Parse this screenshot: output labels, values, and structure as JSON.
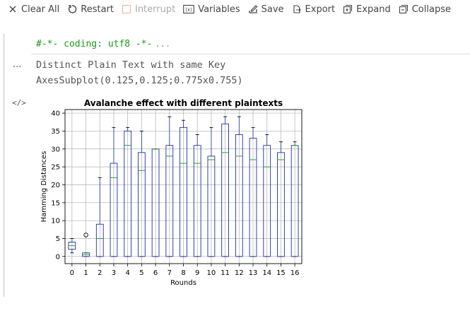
{
  "toolbar": {
    "items": [
      {
        "label": "Clear All",
        "icon": "close-icon",
        "disabled": false
      },
      {
        "label": "Restart",
        "icon": "restart-icon",
        "disabled": false
      },
      {
        "label": "Interrupt",
        "icon": "stop-icon",
        "disabled": true
      },
      {
        "label": "Variables",
        "icon": "variables-icon",
        "disabled": false
      },
      {
        "label": "Save",
        "icon": "save-icon",
        "disabled": false
      },
      {
        "label": "Export",
        "icon": "export-icon",
        "disabled": false
      },
      {
        "label": "Expand",
        "icon": "expand-icon",
        "disabled": false
      },
      {
        "label": "Collapse",
        "icon": "collapse-icon",
        "disabled": false
      }
    ]
  },
  "cell": {
    "code": "#-*- coding: utf8 -*-",
    "code_more": "...",
    "output_prompt": "...",
    "output_lines": [
      "Distinct Plain Text with same Key",
      "AxesSubplot(0.125,0.125;0.775x0.755)"
    ],
    "code_toggle": "</>"
  },
  "colors": {
    "box": "#1f2ea8",
    "median": "#2ca02c",
    "grid": "#b0b0b0"
  },
  "chart_data": {
    "type": "boxplot",
    "title": "Avalanche effect with different plaintexts",
    "xlabel": "Rounds",
    "ylabel": "Hamming Distances",
    "ylim": [
      -2,
      41
    ],
    "yticks": [
      0,
      5,
      10,
      15,
      20,
      25,
      30,
      35,
      40
    ],
    "grid": true,
    "categories": [
      "0",
      "1",
      "2",
      "3",
      "4",
      "5",
      "6",
      "7",
      "8",
      "9",
      "10",
      "11",
      "12",
      "13",
      "14",
      "15",
      "16"
    ],
    "boxes": [
      {
        "whislo": 1,
        "q1": 2,
        "med": 3,
        "q3": 4,
        "whishi": 5,
        "fliers": []
      },
      {
        "whislo": 0,
        "q1": 0,
        "med": 0.5,
        "q3": 1,
        "whishi": 1,
        "fliers": [
          6
        ]
      },
      {
        "whislo": 0,
        "q1": 0,
        "med": 5,
        "q3": 9,
        "whishi": 22,
        "fliers": []
      },
      {
        "whislo": 0,
        "q1": 0,
        "med": 22,
        "q3": 26,
        "whishi": 36,
        "fliers": []
      },
      {
        "whislo": 0,
        "q1": 0,
        "med": 31,
        "q3": 35,
        "whishi": 36,
        "fliers": []
      },
      {
        "whislo": 0,
        "q1": 0,
        "med": 24,
        "q3": 29,
        "whishi": 35,
        "fliers": []
      },
      {
        "whislo": 0,
        "q1": 0,
        "med": 30,
        "q3": 30,
        "whishi": 30,
        "fliers": []
      },
      {
        "whislo": 0,
        "q1": 0,
        "med": 28,
        "q3": 31,
        "whishi": 39,
        "fliers": []
      },
      {
        "whislo": 0,
        "q1": 0,
        "med": 26,
        "q3": 36,
        "whishi": 38,
        "fliers": []
      },
      {
        "whislo": 0,
        "q1": 0,
        "med": 26,
        "q3": 31,
        "whishi": 34,
        "fliers": []
      },
      {
        "whislo": 0,
        "q1": 0,
        "med": 27,
        "q3": 28,
        "whishi": 36,
        "fliers": []
      },
      {
        "whislo": 0,
        "q1": 0,
        "med": 29,
        "q3": 37,
        "whishi": 39,
        "fliers": []
      },
      {
        "whislo": 0,
        "q1": 0,
        "med": 28,
        "q3": 34,
        "whishi": 39,
        "fliers": []
      },
      {
        "whislo": 0,
        "q1": 0,
        "med": 27,
        "q3": 33,
        "whishi": 36,
        "fliers": []
      },
      {
        "whislo": 0,
        "q1": 0,
        "med": 25,
        "q3": 31,
        "whishi": 34,
        "fliers": []
      },
      {
        "whislo": 0,
        "q1": 0,
        "med": 27,
        "q3": 29,
        "whishi": 32,
        "fliers": []
      },
      {
        "whislo": 0,
        "q1": 0,
        "med": 31,
        "q3": 31,
        "whishi": 32,
        "fliers": []
      }
    ]
  }
}
